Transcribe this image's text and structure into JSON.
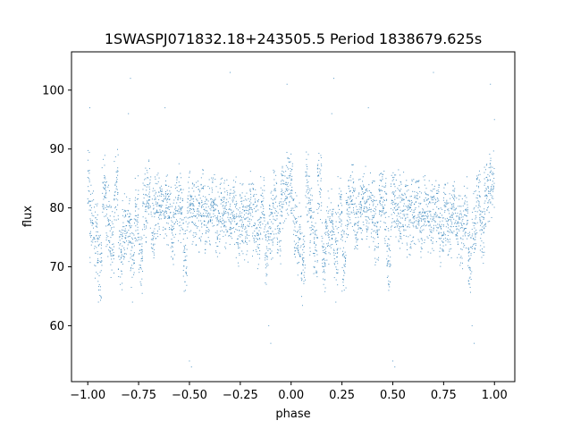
{
  "chart_data": {
    "type": "scatter",
    "title": "1SWASPJ071832.18+243505.5 Period 1838679.625s",
    "xlabel": "phase",
    "ylabel": "flux",
    "xlim": [
      -1.08,
      1.1
    ],
    "ylim": [
      50.5,
      106.5
    ],
    "xticks": [
      -1.0,
      -0.75,
      -0.5,
      -0.25,
      0.0,
      0.25,
      0.5,
      0.75,
      1.0
    ],
    "xtick_labels": [
      "−1.00",
      "−0.75",
      "−0.50",
      "−0.25",
      "0.00",
      "0.25",
      "0.50",
      "0.75",
      "1.00"
    ],
    "yticks": [
      60,
      70,
      80,
      90,
      100
    ],
    "ytick_labels": [
      "60",
      "70",
      "80",
      "90",
      "100"
    ],
    "grid": false,
    "point_color": "#1f77b4",
    "series": [
      {
        "x_range": [
          -1.0,
          1.0
        ],
        "points": [
          [
            -1.0,
            84
          ],
          [
            -0.98,
            77
          ],
          [
            -0.96,
            75
          ],
          [
            -0.94,
            70
          ],
          [
            -0.92,
            83
          ],
          [
            -0.9,
            78
          ],
          [
            -0.88,
            74
          ],
          [
            -0.86,
            84
          ],
          [
            -0.84,
            72
          ],
          [
            -0.82,
            76
          ],
          [
            -0.8,
            77
          ],
          [
            -0.78,
            73
          ],
          [
            -0.76,
            79
          ],
          [
            -0.74,
            71
          ],
          [
            -0.72,
            80
          ],
          [
            -0.7,
            82
          ],
          [
            -0.68,
            78
          ],
          [
            -0.66,
            80
          ],
          [
            -0.64,
            81
          ],
          [
            -0.62,
            79
          ],
          [
            -0.6,
            80
          ],
          [
            -0.58,
            76
          ],
          [
            -0.56,
            81
          ],
          [
            -0.54,
            80
          ],
          [
            -0.52,
            72
          ],
          [
            -0.5,
            81
          ],
          [
            -0.48,
            80
          ],
          [
            -0.46,
            79
          ],
          [
            -0.44,
            80
          ],
          [
            -0.42,
            78
          ],
          [
            -0.4,
            79
          ],
          [
            -0.38,
            80
          ],
          [
            -0.36,
            77
          ],
          [
            -0.34,
            80
          ],
          [
            -0.32,
            79
          ],
          [
            -0.3,
            78
          ],
          [
            -0.28,
            80
          ],
          [
            -0.26,
            76
          ],
          [
            -0.24,
            79
          ],
          [
            -0.22,
            77
          ],
          [
            -0.2,
            80
          ],
          [
            -0.18,
            78
          ],
          [
            -0.16,
            76
          ],
          [
            -0.14,
            79
          ],
          [
            -0.12,
            72
          ],
          [
            -0.1,
            77
          ],
          [
            -0.08,
            81
          ],
          [
            -0.06,
            76
          ],
          [
            -0.04,
            82
          ],
          [
            -0.02,
            83
          ],
          [
            0.0,
            84
          ],
          [
            0.02,
            77
          ],
          [
            0.04,
            75
          ],
          [
            0.06,
            70
          ],
          [
            0.08,
            83
          ],
          [
            0.1,
            78
          ],
          [
            0.12,
            74
          ],
          [
            0.14,
            84
          ],
          [
            0.16,
            72
          ],
          [
            0.18,
            76
          ],
          [
            0.2,
            77
          ],
          [
            0.22,
            73
          ],
          [
            0.24,
            79
          ],
          [
            0.26,
            71
          ],
          [
            0.28,
            80
          ],
          [
            0.3,
            82
          ],
          [
            0.32,
            78
          ],
          [
            0.34,
            80
          ],
          [
            0.36,
            81
          ],
          [
            0.38,
            79
          ],
          [
            0.4,
            80
          ],
          [
            0.42,
            76
          ],
          [
            0.44,
            81
          ],
          [
            0.46,
            80
          ],
          [
            0.48,
            72
          ],
          [
            0.5,
            81
          ],
          [
            0.52,
            80
          ],
          [
            0.54,
            79
          ],
          [
            0.56,
            80
          ],
          [
            0.58,
            78
          ],
          [
            0.6,
            79
          ],
          [
            0.62,
            80
          ],
          [
            0.64,
            77
          ],
          [
            0.66,
            80
          ],
          [
            0.68,
            79
          ],
          [
            0.7,
            78
          ],
          [
            0.72,
            80
          ],
          [
            0.74,
            76
          ],
          [
            0.76,
            79
          ],
          [
            0.78,
            77
          ],
          [
            0.8,
            80
          ],
          [
            0.82,
            78
          ],
          [
            0.84,
            76
          ],
          [
            0.86,
            79
          ],
          [
            0.88,
            72
          ],
          [
            0.9,
            77
          ],
          [
            0.92,
            81
          ],
          [
            0.94,
            76
          ],
          [
            0.96,
            82
          ],
          [
            0.98,
            83
          ],
          [
            1.0,
            84
          ],
          [
            -0.99,
            97
          ],
          [
            -0.8,
            96
          ],
          [
            -0.79,
            102
          ],
          [
            -0.5,
            54
          ],
          [
            -0.49,
            53
          ],
          [
            -0.1,
            57
          ],
          [
            -0.11,
            60
          ],
          [
            0.2,
            96
          ],
          [
            0.21,
            102
          ],
          [
            0.5,
            54
          ],
          [
            0.51,
            53
          ],
          [
            0.9,
            57
          ],
          [
            0.89,
            60
          ],
          [
            1.0,
            95
          ],
          [
            -0.02,
            101
          ],
          [
            0.98,
            101
          ],
          [
            -0.78,
            64
          ],
          [
            0.22,
            64
          ],
          [
            -0.52,
            66
          ],
          [
            0.48,
            66
          ],
          [
            -0.84,
            67
          ],
          [
            0.16,
            67
          ],
          [
            -0.3,
            103
          ],
          [
            0.7,
            103
          ],
          [
            -0.62,
            97
          ],
          [
            0.38,
            97
          ]
        ]
      }
    ]
  }
}
